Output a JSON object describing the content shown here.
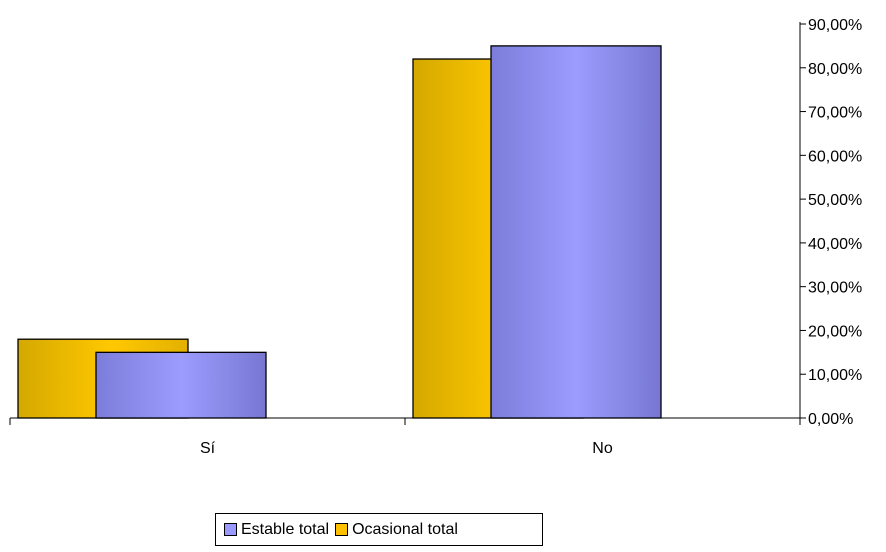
{
  "chart_data": {
    "type": "bar",
    "categories": [
      "Sí",
      "No"
    ],
    "series": [
      {
        "name": "Ocasional total",
        "values": [
          0.18,
          0.82
        ],
        "color": "#FFC000"
      },
      {
        "name": "Estable total",
        "values": [
          0.15,
          0.85
        ],
        "color": "#9999FF"
      }
    ],
    "y_axis": {
      "position": "right",
      "min": 0,
      "max": 0.9,
      "step": 0.1,
      "tick_labels": [
        "0,00%",
        "10,00%",
        "20,00%",
        "30,00%",
        "40,00%",
        "50,00%",
        "60,00%",
        "70,00%",
        "80,00%",
        "90,00%"
      ]
    },
    "legend": {
      "placement": "bottom-center",
      "entries": [
        "Estable total",
        "Ocasional total"
      ]
    },
    "grid": false,
    "title": "",
    "xlabel": "",
    "ylabel": ""
  }
}
